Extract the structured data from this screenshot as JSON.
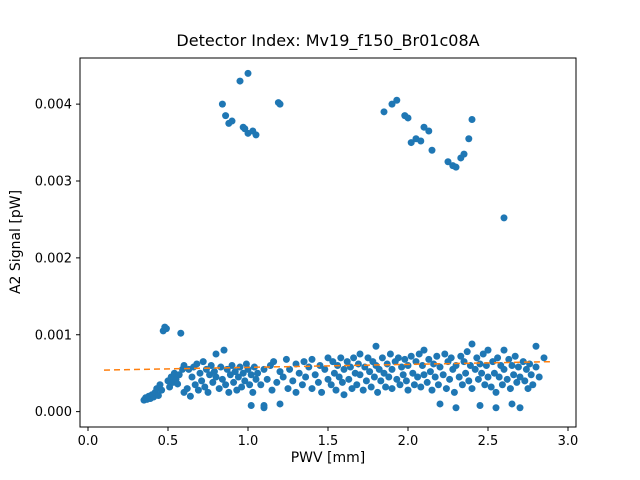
{
  "chart_data": {
    "type": "scatter",
    "title": "Detector Index: Mv19_f150_Br01c08A",
    "xlabel": "PWV [mm]",
    "ylabel": "A2 Signal [pW]",
    "xlim": [
      -0.05,
      3.05
    ],
    "ylim": [
      -0.0002,
      0.0046
    ],
    "grid": false,
    "point_color": "#1f77b4",
    "trend_color": "#ff7f0e",
    "xticks": [
      {
        "v": 0.0,
        "label": "0.0"
      },
      {
        "v": 0.5,
        "label": "0.5"
      },
      {
        "v": 1.0,
        "label": "1.0"
      },
      {
        "v": 1.5,
        "label": "1.5"
      },
      {
        "v": 2.0,
        "label": "2.0"
      },
      {
        "v": 2.5,
        "label": "2.5"
      },
      {
        "v": 3.0,
        "label": "3.0"
      }
    ],
    "yticks": [
      {
        "v": 0.0,
        "label": "0.000"
      },
      {
        "v": 0.001,
        "label": "0.001"
      },
      {
        "v": 0.002,
        "label": "0.002"
      },
      {
        "v": 0.003,
        "label": "0.003"
      },
      {
        "v": 0.004,
        "label": "0.004"
      }
    ],
    "trend_line": {
      "x": [
        0.1,
        2.9
      ],
      "y": [
        0.00054,
        0.00065
      ],
      "style": "dashed"
    },
    "points": [
      [
        0.35,
        0.00015
      ],
      [
        0.36,
        0.00018
      ],
      [
        0.37,
        0.00016
      ],
      [
        0.38,
        0.0002
      ],
      [
        0.39,
        0.00017
      ],
      [
        0.4,
        0.00022
      ],
      [
        0.41,
        0.00019
      ],
      [
        0.42,
        0.00025
      ],
      [
        0.43,
        0.0003
      ],
      [
        0.44,
        0.00021
      ],
      [
        0.45,
        0.00035
      ],
      [
        0.46,
        0.00028
      ],
      [
        0.47,
        0.00105
      ],
      [
        0.48,
        0.0011
      ],
      [
        0.49,
        0.00108
      ],
      [
        0.5,
        0.0004
      ],
      [
        0.51,
        0.00032
      ],
      [
        0.52,
        0.00045
      ],
      [
        0.53,
        0.00038
      ],
      [
        0.54,
        0.0005
      ],
      [
        0.55,
        0.00042
      ],
      [
        0.56,
        0.00036
      ],
      [
        0.57,
        0.00048
      ],
      [
        0.58,
        0.00102
      ],
      [
        0.59,
        0.00055
      ],
      [
        0.6,
        0.0006
      ],
      [
        0.6,
        0.00025
      ],
      [
        0.62,
        0.0003
      ],
      [
        0.63,
        0.00055
      ],
      [
        0.64,
        0.0002
      ],
      [
        0.65,
        0.00045
      ],
      [
        0.66,
        0.00058
      ],
      [
        0.67,
        0.00035
      ],
      [
        0.68,
        0.00062
      ],
      [
        0.69,
        0.00028
      ],
      [
        0.7,
        0.0005
      ],
      [
        0.71,
        0.0004
      ],
      [
        0.72,
        0.00065
      ],
      [
        0.73,
        0.00032
      ],
      [
        0.74,
        0.00055
      ],
      [
        0.75,
        0.00025
      ],
      [
        0.76,
        0.00048
      ],
      [
        0.77,
        0.0006
      ],
      [
        0.78,
        0.00038
      ],
      [
        0.79,
        0.00052
      ],
      [
        0.8,
        0.00045
      ],
      [
        0.8,
        0.00075
      ],
      [
        0.85,
        0.0008
      ],
      [
        0.82,
        0.0003
      ],
      [
        0.83,
        0.00058
      ],
      [
        0.84,
        0.00042
      ],
      [
        0.86,
        0.00035
      ],
      [
        0.87,
        0.00055
      ],
      [
        0.88,
        0.00025
      ],
      [
        0.89,
        0.00048
      ],
      [
        0.9,
        0.0006
      ],
      [
        0.91,
        0.00038
      ],
      [
        0.92,
        0.00052
      ],
      [
        0.93,
        0.00028
      ],
      [
        0.94,
        0.00045
      ],
      [
        0.95,
        0.00058
      ],
      [
        0.96,
        0.00032
      ],
      [
        0.97,
        0.0005
      ],
      [
        0.98,
        0.0004
      ],
      [
        0.99,
        0.00062
      ],
      [
        1.0,
        0.00055
      ],
      [
        1.01,
        0.00035
      ],
      [
        1.02,
        0.00048
      ],
      [
        1.03,
        0.00025
      ],
      [
        1.04,
        0.00058
      ],
      [
        1.05,
        0.00042
      ],
      [
        1.02,
        8e-05
      ],
      [
        1.1,
        5e-05
      ],
      [
        1.06,
        0.0005
      ],
      [
        1.08,
        0.00035
      ],
      [
        1.1,
        0.00055
      ],
      [
        1.1,
        8e-05
      ],
      [
        1.12,
        0.00042
      ],
      [
        1.14,
        0.0006
      ],
      [
        1.15,
        0.00028
      ],
      [
        1.16,
        0.00065
      ],
      [
        1.18,
        0.00038
      ],
      [
        1.2,
        0.00052
      ],
      [
        1.2,
        0.0001
      ],
      [
        1.22,
        0.00045
      ],
      [
        1.24,
        0.00068
      ],
      [
        1.25,
        0.0003
      ],
      [
        1.26,
        0.00055
      ],
      [
        1.28,
        0.0004
      ],
      [
        1.3,
        0.00062
      ],
      [
        1.3,
        0.00025
      ],
      [
        1.32,
        0.0005
      ],
      [
        1.34,
        0.00035
      ],
      [
        1.35,
        0.00065
      ],
      [
        1.36,
        0.00045
      ],
      [
        1.38,
        0.00058
      ],
      [
        1.4,
        0.0003
      ],
      [
        1.4,
        0.00068
      ],
      [
        1.42,
        0.00048
      ],
      [
        1.44,
        0.00038
      ],
      [
        1.45,
        0.0006
      ],
      [
        1.46,
        0.00025
      ],
      [
        1.48,
        0.00055
      ],
      [
        1.5,
        0.00042
      ],
      [
        1.5,
        0.0007
      ],
      [
        1.52,
        0.00035
      ],
      [
        1.53,
        0.00065
      ],
      [
        1.54,
        0.0005
      ],
      [
        1.55,
        0.00028
      ],
      [
        1.56,
        0.0006
      ],
      [
        1.57,
        0.00045
      ],
      [
        1.58,
        0.0007
      ],
      [
        1.59,
        0.00038
      ],
      [
        1.6,
        0.00055
      ],
      [
        1.6,
        0.00022
      ],
      [
        1.62,
        0.00065
      ],
      [
        1.63,
        0.00042
      ],
      [
        1.64,
        0.00058
      ],
      [
        1.65,
        0.0003
      ],
      [
        1.66,
        0.0007
      ],
      [
        1.67,
        0.0005
      ],
      [
        1.68,
        0.00035
      ],
      [
        1.69,
        0.00062
      ],
      [
        1.7,
        0.00048
      ],
      [
        1.7,
        0.00075
      ],
      [
        1.72,
        0.00028
      ],
      [
        1.73,
        0.00058
      ],
      [
        1.74,
        0.0004
      ],
      [
        1.75,
        0.0007
      ],
      [
        1.76,
        0.00052
      ],
      [
        1.77,
        0.00032
      ],
      [
        1.78,
        0.00065
      ],
      [
        1.79,
        0.00045
      ],
      [
        1.8,
        0.0006
      ],
      [
        1.8,
        0.00085
      ],
      [
        1.81,
        0.00025
      ],
      [
        1.82,
        0.00055
      ],
      [
        1.83,
        0.0004
      ],
      [
        1.84,
        0.0007
      ],
      [
        1.85,
        0.0005
      ],
      [
        1.86,
        0.00032
      ],
      [
        1.87,
        0.00062
      ],
      [
        1.88,
        0.00045
      ],
      [
        1.89,
        0.00075
      ],
      [
        1.9,
        0.00055
      ],
      [
        1.9,
        0.0003
      ],
      [
        1.92,
        0.00065
      ],
      [
        1.93,
        0.00042
      ],
      [
        1.94,
        0.0007
      ],
      [
        1.95,
        0.00035
      ],
      [
        1.96,
        0.00058
      ],
      [
        1.97,
        0.00048
      ],
      [
        1.98,
        0.00068
      ],
      [
        1.99,
        0.0004
      ],
      [
        2.0,
        0.0006
      ],
      [
        2.0,
        0.00028
      ],
      [
        2.02,
        0.00072
      ],
      [
        2.03,
        0.0005
      ],
      [
        2.04,
        0.00035
      ],
      [
        2.05,
        0.00065
      ],
      [
        2.06,
        0.00045
      ],
      [
        2.07,
        0.00075
      ],
      [
        2.08,
        0.00032
      ],
      [
        2.09,
        0.0006
      ],
      [
        2.1,
        0.00048
      ],
      [
        2.1,
        0.0008
      ],
      [
        2.12,
        0.00038
      ],
      [
        2.13,
        0.00068
      ],
      [
        2.14,
        0.00052
      ],
      [
        2.15,
        0.00028
      ],
      [
        2.16,
        0.00062
      ],
      [
        2.17,
        0.00045
      ],
      [
        2.18,
        0.00072
      ],
      [
        2.19,
        0.00035
      ],
      [
        2.2,
        0.00058
      ],
      [
        2.2,
        0.0001
      ],
      [
        2.22,
        0.00048
      ],
      [
        2.23,
        0.00075
      ],
      [
        2.24,
        0.0003
      ],
      [
        2.25,
        0.00065
      ],
      [
        2.26,
        0.00042
      ],
      [
        2.27,
        0.0007
      ],
      [
        2.28,
        0.00055
      ],
      [
        2.29,
        0.00025
      ],
      [
        2.3,
        0.0006
      ],
      [
        2.3,
        5e-05
      ],
      [
        2.32,
        0.00045
      ],
      [
        2.33,
        0.00072
      ],
      [
        2.34,
        0.00035
      ],
      [
        2.35,
        0.00065
      ],
      [
        2.36,
        0.0005
      ],
      [
        2.37,
        0.00078
      ],
      [
        2.38,
        0.0004
      ],
      [
        2.39,
        0.0006
      ],
      [
        2.4,
        0.00088
      ],
      [
        2.4,
        0.0003
      ],
      [
        2.42,
        0.00055
      ],
      [
        2.43,
        0.0007
      ],
      [
        2.44,
        0.00042
      ],
      [
        2.45,
        8e-05
      ],
      [
        2.45,
        0.00062
      ],
      [
        2.46,
        0.0005
      ],
      [
        2.47,
        0.00075
      ],
      [
        2.48,
        0.00035
      ],
      [
        2.49,
        0.0006
      ],
      [
        2.5,
        0.00045
      ],
      [
        2.5,
        0.0008
      ],
      [
        2.52,
        0.00032
      ],
      [
        2.53,
        0.00065
      ],
      [
        2.54,
        0.0005
      ],
      [
        2.55,
        0.00025
      ],
      [
        2.55,
        5e-05
      ],
      [
        2.56,
        0.0007
      ],
      [
        2.57,
        0.00045
      ],
      [
        2.58,
        0.0006
      ],
      [
        2.59,
        0.00035
      ],
      [
        2.6,
        0.00055
      ],
      [
        2.6,
        0.0008
      ],
      [
        2.62,
        0.00042
      ],
      [
        2.63,
        0.00068
      ],
      [
        2.64,
        0.0003
      ],
      [
        2.65,
        0.0006
      ],
      [
        2.65,
        0.0001
      ],
      [
        2.66,
        0.00048
      ],
      [
        2.67,
        0.00072
      ],
      [
        2.68,
        0.00038
      ],
      [
        2.69,
        0.00058
      ],
      [
        2.7,
        0.00045
      ],
      [
        2.7,
        5e-05
      ],
      [
        2.72,
        0.00065
      ],
      [
        2.73,
        0.0004
      ],
      [
        2.74,
        0.00055
      ],
      [
        2.75,
        0.0003
      ],
      [
        2.76,
        0.00062
      ],
      [
        2.77,
        0.00048
      ],
      [
        2.78,
        0.00035
      ],
      [
        2.8,
        0.00058
      ],
      [
        2.8,
        0.00085
      ],
      [
        2.82,
        0.00045
      ],
      [
        2.85,
        0.0007
      ],
      [
        0.84,
        0.004
      ],
      [
        0.86,
        0.00385
      ],
      [
        0.88,
        0.00375
      ],
      [
        0.9,
        0.00378
      ],
      [
        0.95,
        0.0043
      ],
      [
        0.97,
        0.0037
      ],
      [
        0.98,
        0.00368
      ],
      [
        1.0,
        0.0044
      ],
      [
        1.0,
        0.00362
      ],
      [
        1.03,
        0.00365
      ],
      [
        1.05,
        0.0036
      ],
      [
        1.19,
        0.00402
      ],
      [
        1.2,
        0.004
      ],
      [
        1.85,
        0.0039
      ],
      [
        1.9,
        0.004
      ],
      [
        1.93,
        0.00405
      ],
      [
        1.98,
        0.00385
      ],
      [
        2.0,
        0.00382
      ],
      [
        2.02,
        0.0035
      ],
      [
        2.05,
        0.00355
      ],
      [
        2.08,
        0.00352
      ],
      [
        2.1,
        0.0037
      ],
      [
        2.13,
        0.00365
      ],
      [
        2.15,
        0.0034
      ],
      [
        2.25,
        0.00325
      ],
      [
        2.28,
        0.0032
      ],
      [
        2.3,
        0.00318
      ],
      [
        2.33,
        0.0033
      ],
      [
        2.35,
        0.00335
      ],
      [
        2.38,
        0.00355
      ],
      [
        2.4,
        0.0038
      ],
      [
        2.6,
        0.00252
      ]
    ]
  }
}
